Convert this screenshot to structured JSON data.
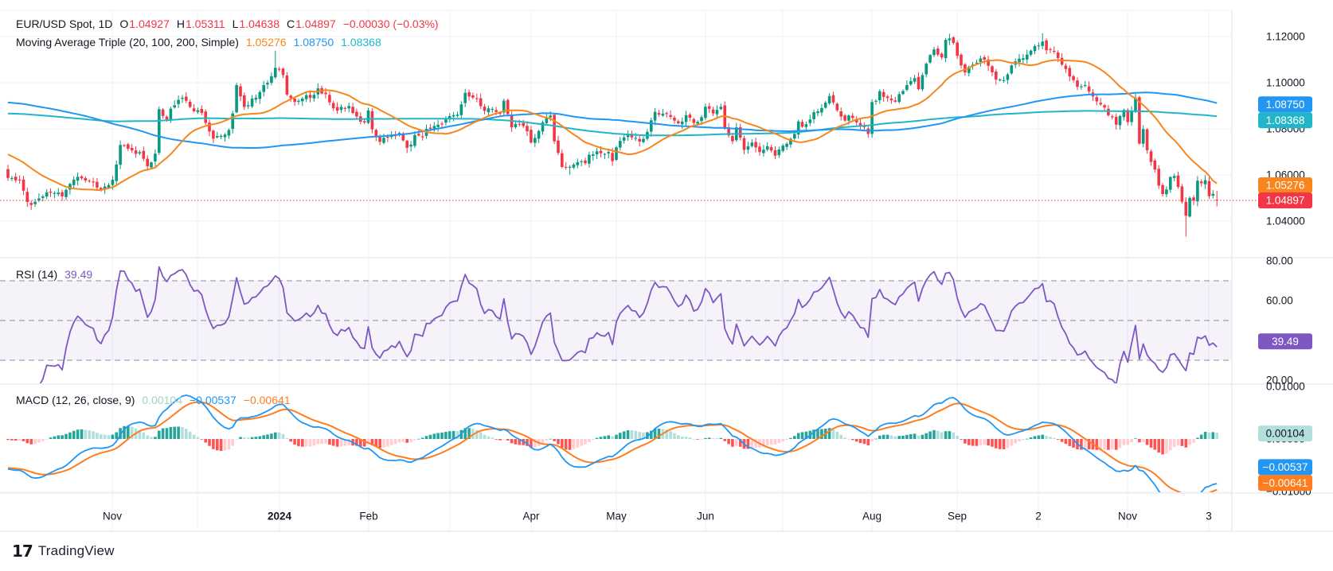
{
  "header": {
    "line1": {
      "symbol": "EUR/USD Spot, 1D",
      "o_key": "O",
      "o": "1.04927",
      "h_key": "H",
      "h": "1.05311",
      "l_key": "L",
      "l": "1.04638",
      "c_key": "C",
      "c": "1.04897",
      "change": "−0.00030 (−0.03%)"
    },
    "line2": {
      "label": "Moving Average Triple (20, 100, 200, Simple)",
      "v1": "1.05276",
      "v2": "1.08750",
      "v3": "1.08368"
    }
  },
  "rsi_header": {
    "label": "RSI (14)",
    "value": "39.49"
  },
  "macd_header": {
    "label": "MACD (12, 26, close, 9)",
    "v1": "0.00104",
    "v2": "−0.00537",
    "v3": "−0.00641"
  },
  "watermark": {
    "glyph": "17",
    "text": "TradingView"
  },
  "colors": {
    "up": "#089981",
    "down": "#f23645",
    "grid": "#eef1f7",
    "separator": "#e0e3eb",
    "axis_text": "#131722",
    "sma20": "#f8861d",
    "sma100": "#2196f3",
    "sma200": "#22b5c8",
    "rsi_line": "#7e57c2",
    "rsi_band_fill": "rgba(126,87,194,0.08)",
    "rsi_dash": "#6a6d78",
    "macd_line": "#2196f3",
    "macd_signal": "#ff7d1f",
    "hist_up_grow": "#26a69a",
    "hist_up_fall": "#b2dfdb",
    "hist_down_fall": "#ff5252",
    "hist_down_grow": "#ffcdd2",
    "last_price_line": "#f23645"
  },
  "price_axis": {
    "ticks": [
      {
        "label": "1.12000",
        "value": 1.12
      },
      {
        "label": "1.10000",
        "value": 1.1
      },
      {
        "label": "1.08000",
        "value": 1.08
      },
      {
        "label": "1.06000",
        "value": 1.06
      },
      {
        "label": "1.04000",
        "value": 1.04
      }
    ],
    "badges": [
      {
        "label": "1.08750",
        "value": 1.0875,
        "bg": "#2196f3",
        "fg": "#ffffff",
        "nudge": -9
      },
      {
        "label": "1.08368",
        "value": 1.08368,
        "bg": "#22b5c8",
        "fg": "#ffffff",
        "nudge": 0
      },
      {
        "label": "1.05276",
        "value": 1.05276,
        "bg": "#f8861d",
        "fg": "#ffffff",
        "nudge": -8
      },
      {
        "label": "1.04897",
        "value": 1.04897,
        "bg": "#f23645",
        "fg": "#ffffff",
        "nudge": 0
      }
    ]
  },
  "rsi_axis": {
    "ticks": [
      {
        "label": "80.00",
        "value": 80
      },
      {
        "label": "60.00",
        "value": 60
      },
      {
        "label": "20.00",
        "value": 20
      }
    ],
    "badge": {
      "label": "39.49",
      "value": 39.49,
      "bg": "#7e57c2",
      "fg": "#ffffff",
      "nudge": 0
    }
  },
  "macd_axis": {
    "ticks": [
      {
        "label": "0.01000",
        "value": 0.01
      },
      {
        "label": "0.00000",
        "value": 0
      },
      {
        "label": "−0.01000",
        "value": -0.01
      }
    ],
    "badges": [
      {
        "label": "0.00104",
        "value": 0.00104,
        "bg": "#b2dfdb",
        "fg": "#131722",
        "nudge": 0
      },
      {
        "label": "−0.00537",
        "value": -0.00537,
        "bg": "#2196f3",
        "fg": "#ffffff",
        "nudge": 0
      },
      {
        "label": "−0.00641",
        "value": -0.00641,
        "bg": "#ff7d1f",
        "fg": "#ffffff",
        "nudge": 13
      }
    ]
  },
  "time_axis": {
    "month_ticks_t": [
      27,
      49,
      70,
      93,
      114,
      135,
      157,
      180,
      200,
      223,
      245,
      266,
      289,
      310
    ],
    "labels": [
      {
        "text": "Nov",
        "t": 27
      },
      {
        "text": "2024",
        "t": 70,
        "bold": true
      },
      {
        "text": "Feb",
        "t": 93
      },
      {
        "text": "Apr",
        "t": 135
      },
      {
        "text": "May",
        "t": 157
      },
      {
        "text": "Jun",
        "t": 180
      },
      {
        "text": "Aug",
        "t": 223
      },
      {
        "text": "Sep",
        "t": 245
      },
      {
        "text": "2",
        "t": 266
      },
      {
        "text": "Nov",
        "t": 289
      },
      {
        "text": "3",
        "t": 310
      }
    ]
  },
  "chart_data": [
    {
      "type": "candlestick",
      "title": "EUR/USD Spot, 1D",
      "last_ohlc": {
        "open": 1.04927,
        "high": 1.05311,
        "low": 1.04638,
        "close": 1.04897,
        "change": -0.0003,
        "change_pct": -0.03
      },
      "last_close_line": 1.04897,
      "ylim": [
        1.0267,
        1.1324
      ],
      "y_tick_values": [
        1.12,
        1.1,
        1.08,
        1.06,
        1.04
      ],
      "overlays": [
        {
          "name": "SMA",
          "period": 20,
          "color": "#f8861d",
          "last": 1.05276
        },
        {
          "name": "SMA",
          "period": 100,
          "color": "#2196f3",
          "last": 1.0875
        },
        {
          "name": "SMA",
          "period": 200,
          "color": "#22b5c8",
          "last": 1.08368
        }
      ],
      "close_anchors": [
        [
          0,
          1.0592
        ],
        [
          3,
          1.0573
        ],
        [
          5,
          1.048
        ],
        [
          6,
          1.0465
        ],
        [
          9,
          1.0512
        ],
        [
          12,
          1.053
        ],
        [
          14,
          1.0508
        ],
        [
          16,
          1.056
        ],
        [
          19,
          1.0593
        ],
        [
          22,
          1.0568
        ],
        [
          24,
          1.0528
        ],
        [
          27,
          1.057
        ],
        [
          29,
          1.073
        ],
        [
          32,
          1.07
        ],
        [
          34,
          1.069
        ],
        [
          36,
          1.063
        ],
        [
          38,
          1.07
        ],
        [
          39,
          1.088
        ],
        [
          41,
          1.085
        ],
        [
          43,
          1.0907
        ],
        [
          45,
          1.094
        ],
        [
          47,
          1.089
        ],
        [
          49,
          1.0882
        ],
        [
          51,
          1.0835
        ],
        [
          53,
          1.076
        ],
        [
          55,
          1.0765
        ],
        [
          57,
          1.0795
        ],
        [
          58,
          1.0875
        ],
        [
          59,
          1.099
        ],
        [
          61,
          1.0894
        ],
        [
          63,
          1.0925
        ],
        [
          65,
          1.0955
        ],
        [
          67,
          1.101
        ],
        [
          69,
          1.106
        ],
        [
          71,
          1.1038
        ],
        [
          72,
          1.0941
        ],
        [
          74,
          1.092
        ],
        [
          76,
          1.094
        ],
        [
          78,
          1.093
        ],
        [
          80,
          1.0975
        ],
        [
          82,
          1.095
        ],
        [
          84,
          1.0883
        ],
        [
          86,
          1.089
        ],
        [
          88,
          1.0905
        ],
        [
          90,
          1.0845
        ],
        [
          92,
          1.0838
        ],
        [
          93,
          1.087
        ],
        [
          94,
          1.0788
        ],
        [
          96,
          1.0742
        ],
        [
          98,
          1.0772
        ],
        [
          101,
          1.078
        ],
        [
          103,
          1.071
        ],
        [
          105,
          1.0772
        ],
        [
          107,
          1.0776
        ],
        [
          110,
          1.082
        ],
        [
          112,
          1.0825
        ],
        [
          114,
          1.0848
        ],
        [
          116,
          1.0855
        ],
        [
          118,
          1.0948
        ],
        [
          119,
          1.0937
        ],
        [
          121,
          1.0925
        ],
        [
          123,
          1.088
        ],
        [
          125,
          1.089
        ],
        [
          127,
          1.0868
        ],
        [
          128,
          1.092
        ],
        [
          129,
          1.086
        ],
        [
          130,
          1.0808
        ],
        [
          132,
          1.0825
        ],
        [
          134,
          1.0789
        ],
        [
          135,
          1.0742
        ],
        [
          137,
          1.0784
        ],
        [
          138,
          1.0837
        ],
        [
          140,
          1.0857
        ],
        [
          141,
          1.0742
        ],
        [
          143,
          1.0644
        ],
        [
          145,
          1.0625
        ],
        [
          147,
          1.0655
        ],
        [
          149,
          1.0655
        ],
        [
          151,
          1.0699
        ],
        [
          153,
          1.0695
        ],
        [
          155,
          1.07
        ],
        [
          156,
          1.0666
        ],
        [
          157,
          1.0712
        ],
        [
          159,
          1.0762
        ],
        [
          161,
          1.077
        ],
        [
          163,
          1.0752
        ],
        [
          165,
          1.0782
        ],
        [
          167,
          1.088
        ],
        [
          169,
          1.0866
        ],
        [
          171,
          1.0856
        ],
        [
          173,
          1.0814
        ],
        [
          175,
          1.0858
        ],
        [
          177,
          1.083
        ],
        [
          179,
          1.0848
        ],
        [
          180,
          1.0904
        ],
        [
          182,
          1.0868
        ],
        [
          184,
          1.0889
        ],
        [
          185,
          1.08
        ],
        [
          187,
          1.074
        ],
        [
          188,
          1.0806
        ],
        [
          190,
          1.0706
        ],
        [
          192,
          1.0738
        ],
        [
          194,
          1.0693
        ],
        [
          196,
          1.0716
        ],
        [
          198,
          1.068
        ],
        [
          200,
          1.0735
        ],
        [
          202,
          1.0746
        ],
        [
          204,
          1.0823
        ],
        [
          206,
          1.0815
        ],
        [
          208,
          1.0865
        ],
        [
          210,
          1.0897
        ],
        [
          212,
          1.0938
        ],
        [
          214,
          1.0884
        ],
        [
          216,
          1.084
        ],
        [
          218,
          1.0856
        ],
        [
          220,
          1.0815
        ],
        [
          222,
          1.0789
        ],
        [
          223,
          1.0911
        ],
        [
          225,
          1.0953
        ],
        [
          227,
          1.0923
        ],
        [
          229,
          1.092
        ],
        [
          232,
          1.0993
        ],
        [
          234,
          1.1014
        ],
        [
          235,
          1.0971
        ],
        [
          237,
          1.1085
        ],
        [
          239,
          1.115
        ],
        [
          241,
          1.1112
        ],
        [
          242,
          1.1192
        ],
        [
          244,
          1.118
        ],
        [
          245,
          1.112
        ],
        [
          247,
          1.1048
        ],
        [
          249,
          1.107
        ],
        [
          251,
          1.11
        ],
        [
          253,
          1.1084
        ],
        [
          255,
          1.102
        ],
        [
          257,
          1.1012
        ],
        [
          259,
          1.1076
        ],
        [
          261,
          1.1115
        ],
        [
          263,
          1.1119
        ],
        [
          265,
          1.1163
        ],
        [
          267,
          1.118
        ],
        [
          268,
          1.1135
        ],
        [
          270,
          1.1136
        ],
        [
          272,
          1.1068
        ],
        [
          274,
          1.1031
        ],
        [
          276,
          1.0975
        ],
        [
          278,
          1.098
        ],
        [
          280,
          1.0936
        ],
        [
          282,
          1.091
        ],
        [
          284,
          1.0862
        ],
        [
          286,
          1.0828
        ],
        [
          288,
          1.088
        ],
        [
          289,
          1.0835
        ],
        [
          290,
          1.0878
        ],
        [
          291,
          1.093
        ],
        [
          292,
          1.0727
        ],
        [
          293,
          1.0803
        ],
        [
          294,
          1.0718
        ],
        [
          295,
          1.0655
        ],
        [
          296,
          1.0624
        ],
        [
          297,
          1.0564
        ],
        [
          298,
          1.0527
        ],
        [
          299,
          1.0539
        ],
        [
          300,
          1.0598
        ],
        [
          301,
          1.0592
        ],
        [
          302,
          1.0543
        ],
        [
          303,
          1.0477
        ],
        [
          304,
          1.0417
        ],
        [
          305,
          1.0495
        ],
        [
          306,
          1.0489
        ],
        [
          307,
          1.0566
        ],
        [
          308,
          1.0555
        ],
        [
          309,
          1.0577
        ],
        [
          310,
          1.0498
        ],
        [
          311,
          1.0509
        ],
        [
          312,
          1.0489
        ]
      ],
      "prehistory_anchors": [
        [
          -210,
          1.0545
        ],
        [
          -200,
          1.0655
        ],
        [
          -190,
          1.078
        ],
        [
          -180,
          1.09
        ],
        [
          -170,
          1.068
        ],
        [
          -160,
          1.063
        ],
        [
          -150,
          1.076
        ],
        [
          -140,
          1.09
        ],
        [
          -130,
          1.099
        ],
        [
          -120,
          1.102
        ],
        [
          -110,
          1.083
        ],
        [
          -100,
          1.071
        ],
        [
          -90,
          1.08
        ],
        [
          -80,
          1.098
        ],
        [
          -70,
          1.112
        ],
        [
          -60,
          1.125
        ],
        [
          -50,
          1.108
        ],
        [
          -40,
          1.096
        ],
        [
          -35,
          1.09
        ],
        [
          -30,
          1.084
        ],
        [
          -25,
          1.078
        ],
        [
          -20,
          1.076
        ],
        [
          -15,
          1.073
        ],
        [
          -10,
          1.07
        ],
        [
          -5,
          1.066
        ],
        [
          -1,
          1.061
        ]
      ],
      "wick_overrides": [
        {
          "t": 6,
          "low": 1.0448
        },
        {
          "t": 69,
          "high": 1.1139
        },
        {
          "t": 103,
          "low": 1.0695
        },
        {
          "t": 145,
          "low": 1.0601
        },
        {
          "t": 244,
          "high": 1.1202
        },
        {
          "t": 267,
          "high": 1.1214
        },
        {
          "t": 304,
          "low": 1.0333
        }
      ]
    },
    {
      "type": "line",
      "name": "RSI (14)",
      "period": 14,
      "last": 39.49,
      "color": "#7e57c2",
      "levels": {
        "upper": 70,
        "middle": 50,
        "lower": 30
      },
      "ylim_visible": [
        20,
        80
      ],
      "y_tick_values": [
        80,
        60,
        20
      ]
    },
    {
      "type": "macd",
      "name": "MACD (12, 26, close, 9)",
      "fast": 12,
      "slow": 26,
      "source": "close",
      "signal": 9,
      "last": {
        "histogram": 0.00104,
        "macd": -0.00537,
        "signal": -0.00641
      },
      "y_tick_values": [
        0.01,
        0,
        -0.01
      ]
    }
  ]
}
